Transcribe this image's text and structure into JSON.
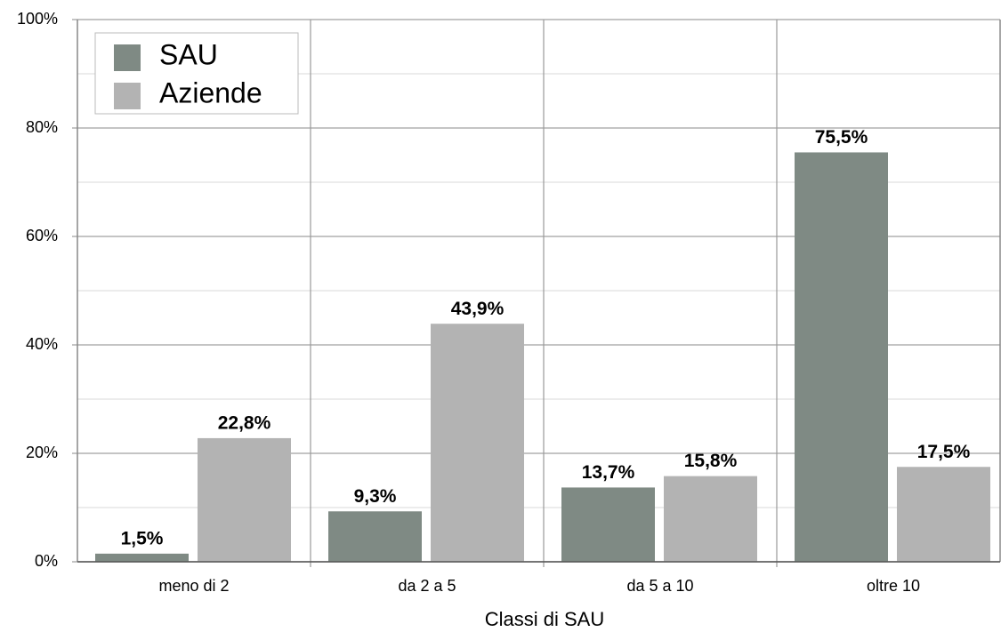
{
  "chart_data": {
    "type": "bar",
    "x_label": "Classi di SAU",
    "categories": [
      "meno di 2",
      "da 2 a 5",
      "da 5 a 10",
      "oltre 10"
    ],
    "series": [
      {
        "name": "SAU",
        "color": "#7f8a84",
        "values": [
          1.5,
          9.3,
          13.7,
          75.5
        ],
        "value_labels": [
          "1,5%",
          "9,3%",
          "13,7%",
          "75,5%"
        ]
      },
      {
        "name": "Aziende",
        "color": "#b3b3b3",
        "values": [
          22.8,
          43.9,
          15.8,
          17.5
        ],
        "value_labels": [
          "22,8%",
          "43,9%",
          "15,8%",
          "17,5%"
        ]
      }
    ],
    "ylim": [
      0,
      100
    ],
    "yticks": [
      {
        "value": 0,
        "label": "0%"
      },
      {
        "value": 20,
        "label": "20%"
      },
      {
        "value": 40,
        "label": "40%"
      },
      {
        "value": 60,
        "label": "60%"
      },
      {
        "value": 80,
        "label": "80%"
      },
      {
        "value": 100,
        "label": "100%"
      }
    ],
    "minor_yticks": [
      10,
      30,
      50,
      70,
      90
    ],
    "grid": true,
    "legend": "top-left"
  }
}
